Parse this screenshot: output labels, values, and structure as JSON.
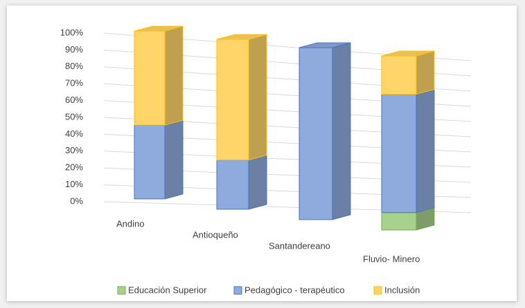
{
  "chart_data": {
    "type": "bar3d_stacked",
    "categories": [
      "Andino",
      "Antioqueño",
      "Santandereano",
      "Fluvio- Minero"
    ],
    "series": [
      {
        "name": "Educación Superior",
        "color": "#a9d18e",
        "values": [
          0,
          0,
          0,
          10
        ]
      },
      {
        "name": "Pedagógico - terapéutico",
        "color": "#8faadc",
        "values": [
          44,
          29,
          100,
          68
        ]
      },
      {
        "name": "Inclusión",
        "color": "#ffd56a",
        "values": [
          56,
          71,
          0,
          22
        ]
      }
    ],
    "ylim": [
      0,
      100
    ],
    "yticks": [
      {
        "value": 0,
        "label": "0%"
      },
      {
        "value": 10,
        "label": "10%"
      },
      {
        "value": 20,
        "label": "20%"
      },
      {
        "value": 30,
        "label": "30%"
      },
      {
        "value": 40,
        "label": "40%"
      },
      {
        "value": 50,
        "label": "50%"
      },
      {
        "value": 60,
        "label": "60%"
      },
      {
        "value": 70,
        "label": "70%"
      },
      {
        "value": 80,
        "label": "80%"
      },
      {
        "value": 90,
        "label": "90%"
      },
      {
        "value": 100,
        "label": "100%"
      }
    ],
    "grid": true,
    "legend": "bottom"
  }
}
